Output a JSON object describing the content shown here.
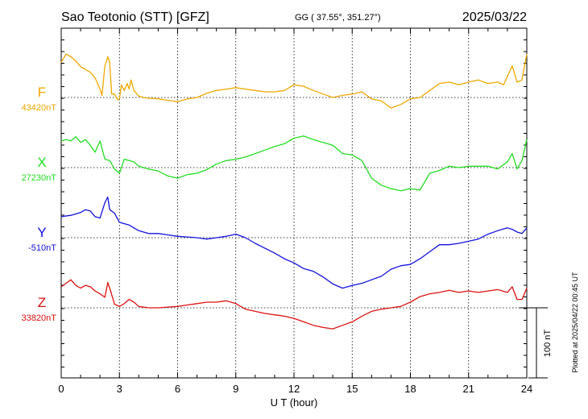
{
  "header": {
    "station": "Sao Teotonio (STT)  [GFZ]",
    "coords": "GG ( 37.55°, 351.27°)",
    "date": "2025/03/22"
  },
  "side_note": "Plotted at 2025/04/22 00:45 UT",
  "scale_label": "100 nT",
  "chart_data": {
    "type": "line",
    "xlabel": "U T (hour)",
    "xlim": [
      0,
      24
    ],
    "x_ticks": [
      "0",
      "3",
      "6",
      "9",
      "12",
      "15",
      "18",
      "21",
      "24"
    ],
    "units_per_scale_bar": 100,
    "series": [
      {
        "name": "F",
        "baseline": "43420nT",
        "color": "#f0a800",
        "x": [
          0,
          0.25,
          0.5,
          0.75,
          1,
          1.25,
          1.5,
          1.75,
          2,
          2.1,
          2.25,
          2.4,
          2.5,
          2.6,
          2.75,
          2.9,
          3.0,
          3.1,
          3.25,
          3.4,
          3.5,
          3.6,
          3.75,
          4,
          4.25,
          4.5,
          5,
          5.5,
          6,
          6.5,
          7,
          7.5,
          8,
          8.5,
          9,
          9.5,
          10,
          10.5,
          11,
          11.5,
          12,
          12.5,
          13,
          13.5,
          14,
          14.5,
          15,
          15.5,
          16,
          16.5,
          17,
          17.5,
          18,
          18.5,
          19,
          19.5,
          20,
          20.5,
          21,
          21.5,
          22,
          22.5,
          22.8,
          23,
          23.25,
          23.5,
          23.75,
          24
        ],
        "y": [
          50,
          62,
          58,
          52,
          44,
          40,
          36,
          28,
          12,
          3,
          45,
          58,
          50,
          5,
          5,
          -3,
          -2,
          18,
          10,
          20,
          12,
          25,
          10,
          2,
          0,
          -1,
          -2,
          -4,
          -6,
          -2,
          0,
          6,
          10,
          12,
          14,
          12,
          10,
          8,
          8,
          10,
          18,
          16,
          10,
          5,
          0,
          3,
          5,
          8,
          -2,
          -5,
          -15,
          -10,
          -2,
          0,
          10,
          20,
          22,
          18,
          22,
          25,
          20,
          22,
          18,
          30,
          45,
          22,
          25,
          62
        ]
      },
      {
        "name": "X",
        "baseline": "27230nT",
        "color": "#22dd22",
        "x": [
          0,
          0.25,
          0.5,
          0.75,
          1,
          1.25,
          1.5,
          1.75,
          2,
          2.25,
          2.5,
          2.75,
          3,
          3.25,
          3.5,
          3.75,
          4,
          4.5,
          5,
          5.5,
          6,
          6.5,
          7,
          7.5,
          8,
          8.5,
          9,
          9.5,
          10,
          10.5,
          11,
          11.5,
          12,
          12.5,
          13,
          13.5,
          14,
          14.5,
          15,
          15.5,
          16,
          16.5,
          17,
          17.5,
          18,
          18.5,
          19,
          19.5,
          20,
          20.5,
          21,
          21.5,
          22,
          22.5,
          23,
          23.25,
          23.5,
          23.75,
          24
        ],
        "y": [
          38,
          40,
          38,
          44,
          36,
          40,
          32,
          22,
          38,
          12,
          10,
          -2,
          -8,
          12,
          10,
          8,
          2,
          -2,
          -5,
          -12,
          -15,
          -10,
          -8,
          -3,
          5,
          10,
          12,
          15,
          20,
          25,
          30,
          34,
          42,
          45,
          40,
          36,
          32,
          20,
          18,
          10,
          -15,
          -25,
          -30,
          -33,
          -30,
          -32,
          -8,
          -4,
          2,
          0,
          2,
          2,
          2,
          -2,
          8,
          20,
          -2,
          10,
          40
        ]
      },
      {
        "name": "Y",
        "baseline": "-510nT",
        "color": "#1212dd",
        "x": [
          0,
          0.5,
          1,
          1.25,
          1.5,
          1.75,
          2,
          2.25,
          2.4,
          2.5,
          2.75,
          3,
          3.25,
          3.5,
          3.75,
          4,
          4.5,
          5,
          5.5,
          6,
          6.5,
          7,
          7.5,
          8,
          8.5,
          9,
          9.5,
          10,
          10.5,
          11,
          11.5,
          12,
          12.5,
          13,
          13.5,
          14,
          14.5,
          15,
          15.5,
          16,
          16.5,
          17,
          17.5,
          18,
          18.5,
          19,
          19.5,
          20,
          20.5,
          21,
          21.5,
          22,
          22.5,
          23,
          23.25,
          23.5,
          23.75,
          24
        ],
        "y": [
          30,
          32,
          36,
          40,
          38,
          30,
          28,
          50,
          58,
          40,
          35,
          22,
          20,
          18,
          14,
          10,
          6,
          6,
          4,
          2,
          1,
          0,
          -2,
          0,
          2,
          5,
          0,
          -8,
          -15,
          -22,
          -30,
          -36,
          -44,
          -48,
          -56,
          -66,
          -72,
          -68,
          -65,
          -60,
          -55,
          -45,
          -40,
          -38,
          -30,
          -20,
          -10,
          -10,
          -8,
          -5,
          -2,
          5,
          10,
          14,
          12,
          8,
          6,
          14
        ]
      },
      {
        "name": "Z",
        "baseline": "33820nT",
        "color": "#dd1111",
        "x": [
          0,
          0.25,
          0.5,
          0.75,
          1,
          1.25,
          1.5,
          1.75,
          2,
          2.25,
          2.4,
          2.5,
          2.75,
          3,
          3.25,
          3.5,
          3.75,
          4,
          4.5,
          5,
          5.5,
          6,
          6.5,
          7,
          7.5,
          8,
          8.5,
          9,
          9.5,
          10,
          10.5,
          11,
          11.5,
          12,
          12.5,
          13,
          13.5,
          14,
          14.5,
          15,
          15.5,
          16,
          16.5,
          17,
          17.5,
          18,
          18.5,
          19,
          19.5,
          20,
          20.5,
          21,
          21.5,
          22,
          22.5,
          23,
          23.25,
          23.5,
          23.75,
          24
        ],
        "y": [
          30,
          35,
          40,
          32,
          28,
          32,
          30,
          24,
          20,
          15,
          36,
          28,
          5,
          2,
          6,
          12,
          8,
          2,
          0,
          0,
          1,
          2,
          4,
          6,
          8,
          8,
          10,
          6,
          -2,
          -5,
          -8,
          -10,
          -12,
          -15,
          -20,
          -25,
          -28,
          -30,
          -25,
          -20,
          -12,
          -5,
          -2,
          0,
          2,
          8,
          16,
          20,
          22,
          25,
          22,
          24,
          22,
          24,
          26,
          22,
          30,
          12,
          12,
          28
        ]
      }
    ]
  }
}
